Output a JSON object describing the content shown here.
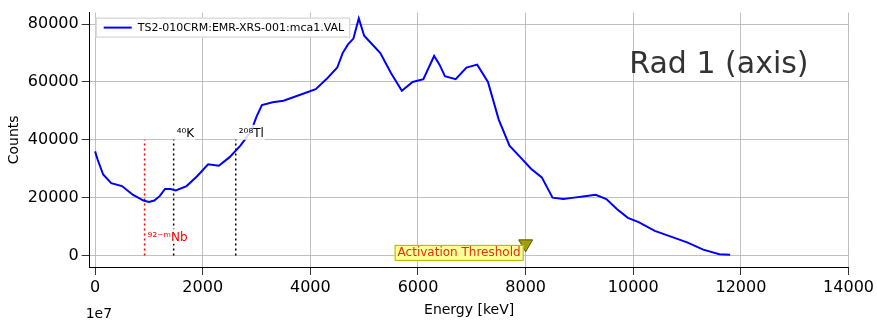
{
  "chart_data": {
    "type": "line",
    "title": "Rad 1 (axis)",
    "x_label": "Energy [keV]",
    "y_label": "Counts",
    "offset_text": "1e7",
    "series": [
      {
        "name": "TS2-010CRM:EMR-XRS-001:mca1.VAL",
        "color": "#0000ff",
        "line_style": "solid",
        "x": [
          0,
          50,
          150,
          300,
          500,
          700,
          900,
          1000,
          1100,
          1200,
          1300,
          1400,
          1500,
          1700,
          1900,
          2100,
          2300,
          2500,
          2700,
          2900,
          3000,
          3100,
          3300,
          3500,
          3800,
          4100,
          4300,
          4500,
          4600,
          4700,
          4800,
          4900,
          5000,
          5100,
          5300,
          5500,
          5700,
          5900,
          6100,
          6300,
          6400,
          6500,
          6700,
          6900,
          7100,
          7300,
          7500,
          7700,
          7900,
          8100,
          8300,
          8500,
          8700,
          8900,
          9100,
          9300,
          9500,
          9700,
          9900,
          10100,
          10400,
          10700,
          11000,
          11300,
          11600,
          11800
        ],
        "values": [
          36000,
          33000,
          28000,
          25000,
          24000,
          21000,
          19000,
          18500,
          19000,
          20500,
          23000,
          23000,
          22500,
          24000,
          27500,
          31500,
          31000,
          34000,
          38000,
          43000,
          48000,
          52000,
          53000,
          53500,
          55500,
          57500,
          61000,
          65000,
          70000,
          73000,
          75000,
          82000,
          76000,
          74000,
          70000,
          63000,
          57000,
          60000,
          61000,
          69000,
          66000,
          62000,
          61000,
          65000,
          66000,
          60000,
          47000,
          38000,
          34000,
          30000,
          27000,
          20000,
          19500,
          20000,
          20500,
          21000,
          19500,
          16000,
          13000,
          11500,
          8500,
          6500,
          4500,
          2000,
          400,
          200
        ]
      }
    ],
    "vlines": [
      {
        "label": "⁹²⁻ᵐNb",
        "x": 920,
        "y": [
          0,
          40000
        ],
        "label_y": 4000,
        "color": "#ff0000",
        "line_style": "dotted"
      },
      {
        "label": "⁴⁰K",
        "x": 1460,
        "y": [
          0,
          40000
        ],
        "label_y": 40000,
        "color": "#000000",
        "line_style": "dotted"
      },
      {
        "label": "²⁰⁸Tl",
        "x": 2614,
        "y": [
          0,
          40000
        ],
        "label_y": 40000,
        "color": "#000000",
        "line_style": "dotted"
      }
    ],
    "threshold": {
      "label": "Activation Threshold",
      "x": 8000,
      "y": 4000,
      "color": "#a0a000",
      "marker": "triangle"
    },
    "xlim": [
      -100,
      14000
    ],
    "xticks": [
      0,
      2000,
      4000,
      6000,
      8000,
      10000,
      12000,
      14000
    ],
    "ylim": [
      -4000,
      84000
    ],
    "yticks": [
      0,
      20000,
      40000,
      60000,
      80000
    ],
    "grid": true,
    "legend": "upper left"
  }
}
